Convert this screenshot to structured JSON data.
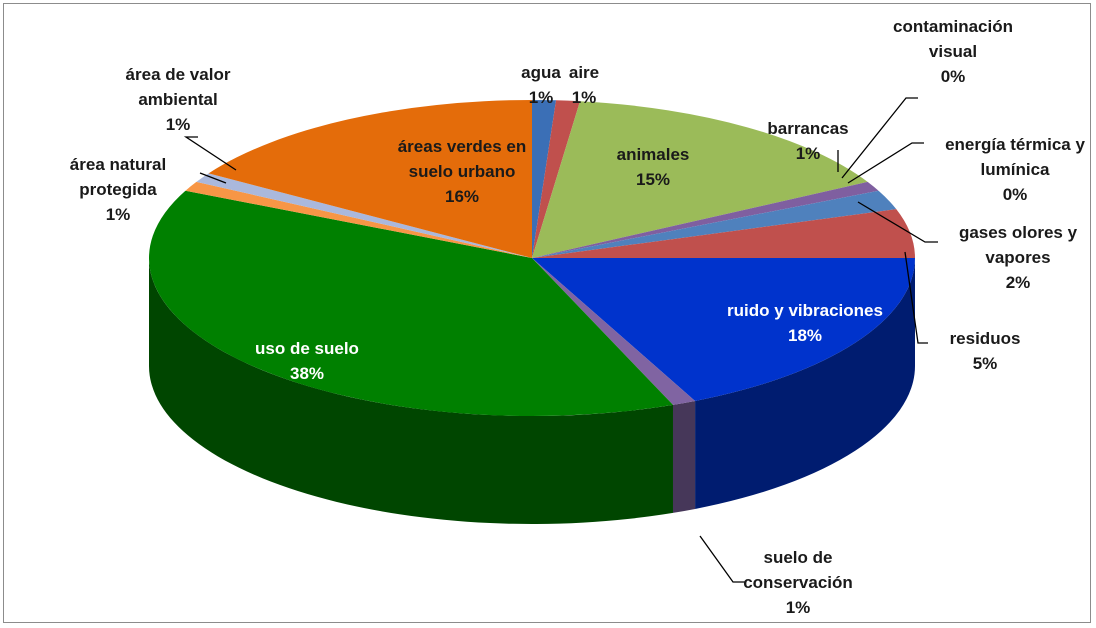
{
  "chart_data": {
    "type": "pie",
    "categories": [
      "agua",
      "aire",
      "animales",
      "barrancas",
      "contaminación visual",
      "energía térmica y lumínica",
      "gases olores y vapores",
      "residuos",
      "ruido y vibraciones",
      "suelo de conservación",
      "uso de suelo",
      "área natural protegida",
      "área de valor ambiental",
      "áreas verdes en suelo urbano"
    ],
    "values": [
      1,
      1,
      15,
      1,
      0,
      0,
      2,
      5,
      18,
      1,
      38,
      1,
      1,
      16
    ],
    "value_labels": [
      "1%",
      "1%",
      "15%",
      "1%",
      "0%",
      "0%",
      "2%",
      "5%",
      "18%",
      "1%",
      "38%",
      "1%",
      "1%",
      "16%"
    ],
    "colors": [
      "#3b6fb6",
      "#c0504d",
      "#9bbb59",
      "#7f5fa0",
      "#4bacc6",
      "#f79646",
      "#4f81bd",
      "#c0504d",
      "#0033cc",
      "#8064a2",
      "#008000",
      "#f79646",
      "#aab8dc",
      "#e46c0a"
    ]
  }
}
